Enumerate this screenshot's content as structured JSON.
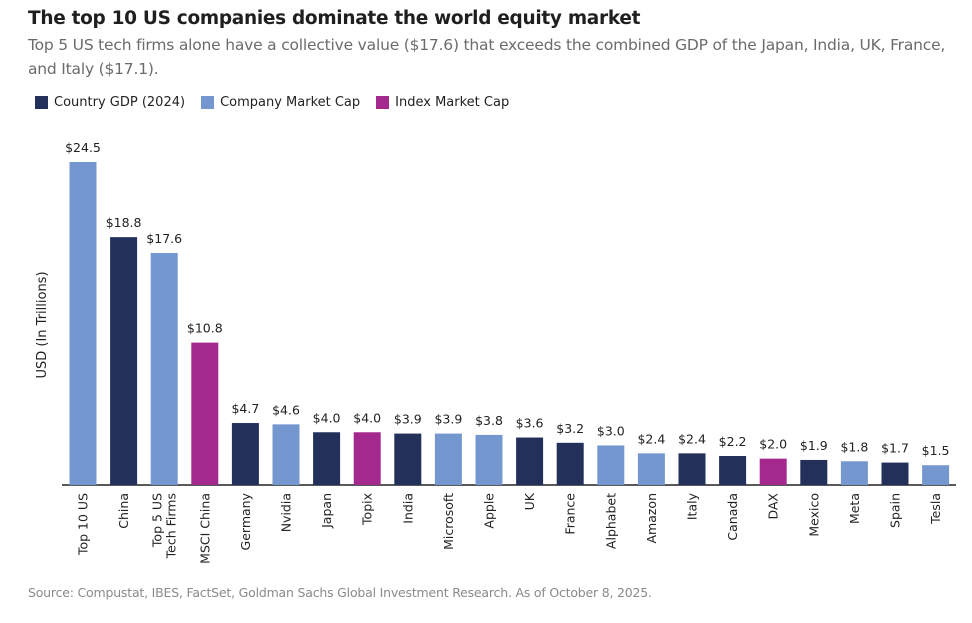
{
  "colors": {
    "gdp": "#22305a",
    "company": "#7597cf",
    "index": "#a3298f"
  },
  "chart_data": {
    "type": "bar",
    "title": "The top 10 US companies dominate the world equity market",
    "subtitle": "Top 5 US tech firms alone have a collective value ($17.6) that exceeds the combined GDP of the Japan, India, UK, France, and Italy ($17.1).",
    "ylabel": "USD (In Trillions)",
    "xlabel": "",
    "ylim": [
      0,
      24.5
    ],
    "grid": false,
    "legend_position": "top-left",
    "legend": [
      {
        "key": "gdp",
        "label": "Country GDP (2024)"
      },
      {
        "key": "company",
        "label": "Company Market Cap"
      },
      {
        "key": "index",
        "label": "Index Market Cap"
      }
    ],
    "categories": [
      "Top 10 US",
      "China",
      "Top 5 US|Tech Firms",
      "MSCI China",
      "Germany",
      "Nvidia",
      "Japan",
      "Topix",
      "India",
      "Microsoft",
      "Apple",
      "UK",
      "France",
      "Alphabet",
      "Amazon",
      "Italy",
      "Canada",
      "DAX",
      "Mexico",
      "Meta",
      "Spain",
      "Tesla"
    ],
    "values": [
      24.5,
      18.8,
      17.6,
      10.8,
      4.7,
      4.6,
      4.0,
      4.0,
      3.9,
      3.9,
      3.8,
      3.6,
      3.2,
      3.0,
      2.4,
      2.4,
      2.2,
      2.0,
      1.9,
      1.8,
      1.7,
      1.5
    ],
    "labels": [
      "$24.5",
      "$18.8",
      "$17.6",
      "$10.8",
      "$4.7",
      "$4.6",
      "$4.0",
      "$4.0",
      "$3.9",
      "$3.9",
      "$3.8",
      "$3.6",
      "$3.2",
      "$3.0",
      "$2.4",
      "$2.4",
      "$2.2",
      "$2.0",
      "$1.9",
      "$1.8",
      "$1.7",
      "$1.5"
    ],
    "types": [
      "company",
      "gdp",
      "company",
      "index",
      "gdp",
      "company",
      "gdp",
      "index",
      "gdp",
      "company",
      "company",
      "gdp",
      "gdp",
      "company",
      "company",
      "gdp",
      "gdp",
      "index",
      "gdp",
      "company",
      "gdp",
      "company"
    ]
  },
  "source": "Source: Compustat, IBES, FactSet, Goldman Sachs Global Investment Research. As of October 8, 2025."
}
